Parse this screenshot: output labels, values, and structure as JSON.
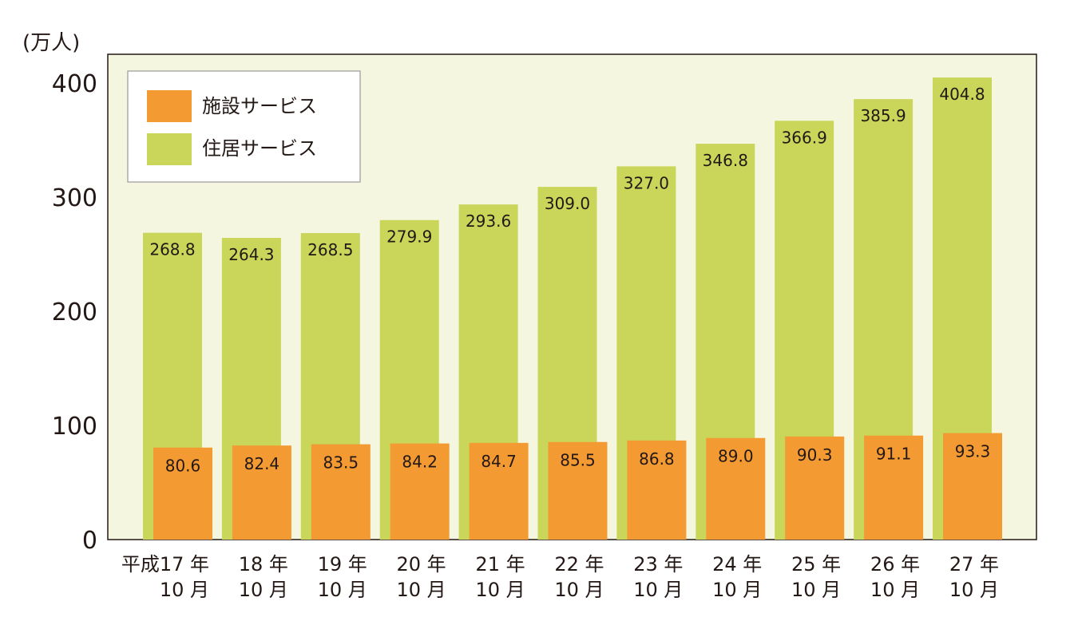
{
  "chart_data": {
    "type": "bar",
    "unit_label": "(万人)",
    "ylim": [
      0,
      420
    ],
    "yticks": [
      "0",
      "100",
      "200",
      "300",
      "400"
    ],
    "categories": [
      [
        "平成17 年",
        "10 月"
      ],
      [
        "18 年",
        "10 月"
      ],
      [
        "19 年",
        "10 月"
      ],
      [
        "20 年",
        "10 月"
      ],
      [
        "21 年",
        "10 月"
      ],
      [
        "22 年",
        "10 月"
      ],
      [
        "23 年",
        "10 月"
      ],
      [
        "24 年",
        "10 月"
      ],
      [
        "25 年",
        "10 月"
      ],
      [
        "26 年",
        "10 月"
      ],
      [
        "27 年",
        "10 月"
      ]
    ],
    "series": [
      {
        "name": "施設サービス",
        "color": "#f39a32",
        "values": [
          80.6,
          82.4,
          83.5,
          84.2,
          84.7,
          85.5,
          86.8,
          89.0,
          90.3,
          91.1,
          93.3
        ],
        "labels": [
          "80.6",
          "82.4",
          "83.5",
          "84.2",
          "84.7",
          "85.5",
          "86.8",
          "89.0",
          "90.3",
          "91.1",
          "93.3"
        ]
      },
      {
        "name": "住居サービス",
        "color": "#c9d65a",
        "values": [
          268.8,
          264.3,
          268.5,
          279.9,
          293.6,
          309.0,
          327.0,
          346.8,
          366.9,
          385.9,
          404.8
        ],
        "labels": [
          "268.8",
          "264.3",
          "268.5",
          "279.9",
          "293.6",
          "309.0",
          "327.0",
          "346.8",
          "366.9",
          "385.9",
          "404.8"
        ]
      }
    ],
    "plot_background": "#f4f6e0",
    "legend_position": "top-left",
    "grid": false
  }
}
